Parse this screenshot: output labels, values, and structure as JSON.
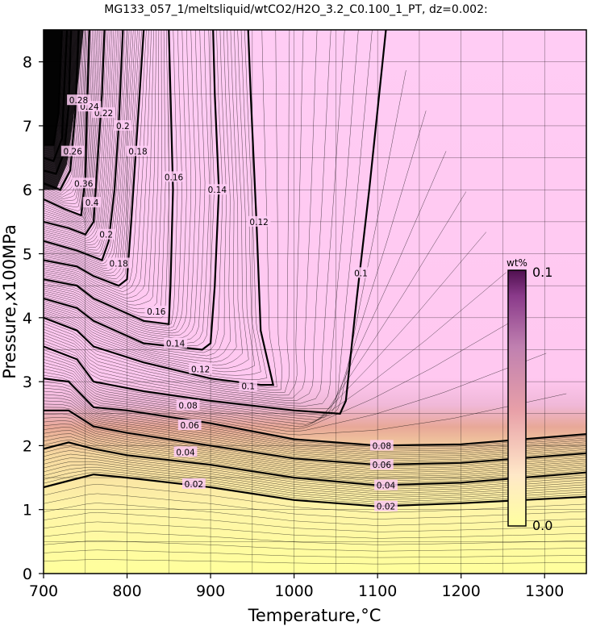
{
  "chart_data": {
    "type": "heatmap",
    "title": "MG133_057_1/meltsliquid/wtCO2/H2O_3.2_C0.100_1_PT, dz=0.002:",
    "xlabel": "Temperature,°C",
    "ylabel": "Pressure,x100MPa",
    "xlim": [
      700,
      1350
    ],
    "ylim": [
      0,
      8.5
    ],
    "x_ticks": [
      700,
      800,
      900,
      1000,
      1100,
      1200,
      1300
    ],
    "y_ticks": [
      0,
      1,
      2,
      3,
      4,
      5,
      6,
      7,
      8
    ],
    "grid": true,
    "colorbar": {
      "unit": "wt%",
      "min_label": "0.0",
      "max_label": "0.1",
      "min": 0.0,
      "max": 0.1,
      "colors": [
        "#ffffa0",
        "#ffe0c0",
        "#e8a0a8",
        "#c080b0",
        "#8a3a8a",
        "#501050"
      ]
    },
    "contour_interval": 0.002,
    "major_contours": [
      {
        "level": 0.02,
        "label": "0.02",
        "points": [
          [
            700,
            1.35
          ],
          [
            730,
            1.45
          ],
          [
            760,
            1.55
          ],
          [
            800,
            1.5
          ],
          [
            900,
            1.35
          ],
          [
            1000,
            1.15
          ],
          [
            1100,
            1.05
          ],
          [
            1200,
            1.1
          ],
          [
            1350,
            1.2
          ]
        ],
        "labels_at": [
          [
            880,
            1.4
          ],
          [
            1110,
            1.05
          ]
        ]
      },
      {
        "level": 0.04,
        "label": "0.04",
        "points": [
          [
            700,
            1.95
          ],
          [
            730,
            2.05
          ],
          [
            760,
            1.95
          ],
          [
            800,
            1.85
          ],
          [
            900,
            1.7
          ],
          [
            1000,
            1.5
          ],
          [
            1100,
            1.38
          ],
          [
            1200,
            1.42
          ],
          [
            1350,
            1.58
          ]
        ],
        "labels_at": [
          [
            870,
            1.9
          ],
          [
            1110,
            1.38
          ]
        ]
      },
      {
        "level": 0.06,
        "label": "0.06",
        "points": [
          [
            700,
            2.55
          ],
          [
            730,
            2.55
          ],
          [
            760,
            2.3
          ],
          [
            800,
            2.2
          ],
          [
            900,
            2.0
          ],
          [
            1000,
            1.8
          ],
          [
            1100,
            1.7
          ],
          [
            1200,
            1.73
          ],
          [
            1350,
            1.88
          ]
        ],
        "labels_at": [
          [
            875,
            2.32
          ],
          [
            1105,
            1.7
          ]
        ]
      },
      {
        "level": 0.08,
        "label": "0.08",
        "points": [
          [
            700,
            3.05
          ],
          [
            730,
            3.0
          ],
          [
            760,
            2.6
          ],
          [
            800,
            2.55
          ],
          [
            900,
            2.35
          ],
          [
            1000,
            2.1
          ],
          [
            1100,
            2.0
          ],
          [
            1200,
            2.02
          ],
          [
            1350,
            2.18
          ]
        ],
        "labels_at": [
          [
            873,
            2.63
          ],
          [
            1105,
            2.0
          ]
        ]
      },
      {
        "level": 0.1,
        "label": "0.1",
        "points": [
          [
            700,
            3.55
          ],
          [
            740,
            3.35
          ],
          [
            760,
            3.0
          ],
          [
            820,
            2.85
          ],
          [
            900,
            2.7
          ],
          [
            1000,
            2.55
          ],
          [
            1055,
            2.5
          ],
          [
            1062,
            2.7
          ],
          [
            1075,
            4.3
          ],
          [
            1090,
            6.0
          ],
          [
            1110,
            8.5
          ]
        ],
        "labels_at": [
          [
            945,
            2.93
          ],
          [
            1080,
            4.7
          ]
        ]
      },
      {
        "level": 0.12,
        "label": "0.12",
        "points": [
          [
            700,
            4.0
          ],
          [
            740,
            3.8
          ],
          [
            760,
            3.55
          ],
          [
            820,
            3.3
          ],
          [
            900,
            3.05
          ],
          [
            960,
            2.95
          ],
          [
            975,
            2.95
          ],
          [
            960,
            3.8
          ],
          [
            955,
            5.5
          ],
          [
            948,
            7.5
          ],
          [
            945,
            8.5
          ]
        ],
        "labels_at": [
          [
            888,
            3.2
          ],
          [
            958,
            5.5
          ]
        ]
      },
      {
        "level": 0.14,
        "label": "0.14",
        "points": [
          [
            700,
            4.3
          ],
          [
            740,
            4.15
          ],
          [
            760,
            3.95
          ],
          [
            820,
            3.6
          ],
          [
            890,
            3.5
          ],
          [
            900,
            3.6
          ],
          [
            905,
            4.5
          ],
          [
            910,
            6.0
          ],
          [
            905,
            7.5
          ],
          [
            903,
            8.5
          ]
        ],
        "labels_at": [
          [
            858,
            3.6
          ],
          [
            908,
            6.0
          ]
        ]
      },
      {
        "level": 0.16,
        "label": "0.16",
        "points": [
          [
            700,
            4.6
          ],
          [
            740,
            4.5
          ],
          [
            760,
            4.3
          ],
          [
            820,
            3.95
          ],
          [
            850,
            3.9
          ],
          [
            852,
            4.5
          ],
          [
            855,
            6.0
          ],
          [
            852,
            7.5
          ],
          [
            850,
            8.5
          ]
        ],
        "labels_at": [
          [
            835,
            4.1
          ],
          [
            856,
            6.2
          ]
        ]
      },
      {
        "level": 0.18,
        "label": "0.18",
        "points": [
          [
            700,
            4.9
          ],
          [
            740,
            4.8
          ],
          [
            760,
            4.65
          ],
          [
            790,
            4.5
          ],
          [
            800,
            4.6
          ],
          [
            805,
            5.5
          ],
          [
            810,
            6.5
          ],
          [
            815,
            7.5
          ],
          [
            820,
            8.5
          ]
        ],
        "labels_at": [
          [
            790,
            4.85
          ],
          [
            813,
            6.6
          ]
        ]
      },
      {
        "level": 0.2,
        "label": "0.2",
        "points": [
          [
            700,
            5.2
          ],
          [
            740,
            5.05
          ],
          [
            760,
            4.95
          ],
          [
            770,
            4.9
          ],
          [
            778,
            5.2
          ],
          [
            785,
            6.0
          ],
          [
            790,
            7.0
          ],
          [
            795,
            8.5
          ]
        ],
        "labels_at": [
          [
            775,
            5.3
          ],
          [
            795,
            7.0
          ]
        ]
      },
      {
        "level": 0.22,
        "label": "0.22",
        "points": [
          [
            700,
            5.5
          ],
          [
            730,
            5.4
          ],
          [
            750,
            5.3
          ],
          [
            760,
            5.5
          ],
          [
            765,
            6.5
          ],
          [
            770,
            7.5
          ],
          [
            773,
            8.5
          ]
        ],
        "labels_at": [
          [
            772,
            7.2
          ]
        ]
      },
      {
        "level": 0.24,
        "label": "0.24",
        "points": [
          [
            700,
            5.85
          ],
          [
            725,
            5.7
          ],
          [
            745,
            5.6
          ],
          [
            750,
            6.2
          ],
          [
            752,
            7.2
          ],
          [
            755,
            8.5
          ]
        ],
        "labels_at": [
          [
            755,
            7.3
          ]
        ]
      },
      {
        "level": 0.26,
        "label": "0.26",
        "points": [
          [
            700,
            6.1
          ],
          [
            720,
            6.0
          ],
          [
            732,
            6.3
          ],
          [
            738,
            7.2
          ],
          [
            742,
            8.5
          ]
        ],
        "labels_at": [
          [
            735,
            6.6
          ]
        ]
      },
      {
        "level": 0.28,
        "label": "0.28",
        "points": [
          [
            700,
            6.3
          ],
          [
            715,
            6.25
          ],
          [
            725,
            6.6
          ],
          [
            730,
            7.3
          ],
          [
            733,
            8.5
          ]
        ],
        "labels_at": [
          [
            742,
            7.4
          ]
        ]
      },
      {
        "level": 0.36,
        "label": "0.36",
        "points": [
          [
            700,
            6.5
          ],
          [
            712,
            6.45
          ],
          [
            722,
            6.8
          ],
          [
            728,
            8.5
          ]
        ],
        "labels_at": [
          [
            748,
            6.1
          ]
        ]
      },
      {
        "level": 0.4,
        "label": "0.4",
        "points": [
          [
            700,
            6.7
          ],
          [
            712,
            6.7
          ],
          [
            718,
            7.2
          ],
          [
            722,
            8.5
          ]
        ],
        "labels_at": [
          [
            758,
            5.8
          ]
        ]
      }
    ]
  }
}
